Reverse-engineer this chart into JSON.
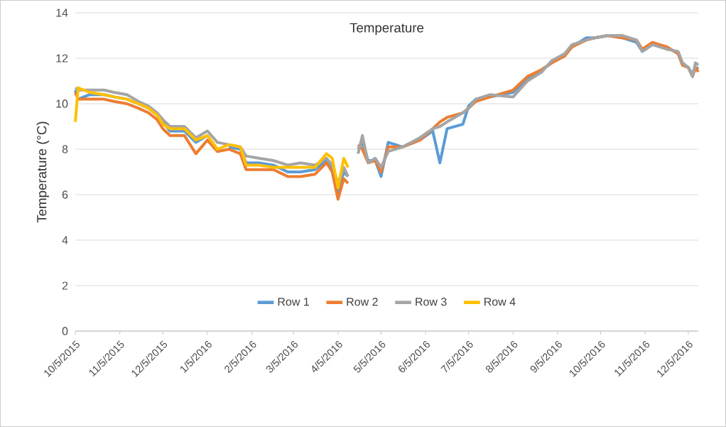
{
  "chart_data": {
    "type": "line",
    "title": "Temperature",
    "ylabel": "Temperature (°C)",
    "x": [
      "2015-10-05",
      "2015-10-07",
      "2015-10-15",
      "2015-10-25",
      "2015-11-01",
      "2015-11-10",
      "2015-11-18",
      "2015-11-25",
      "2015-12-01",
      "2015-12-05",
      "2015-12-10",
      "2015-12-20",
      "2015-12-28",
      "2016-01-05",
      "2016-01-12",
      "2016-01-20",
      "2016-01-28",
      "2016-02-01",
      "2016-02-10",
      "2016-02-20",
      "2016-03-01",
      "2016-03-10",
      "2016-03-20",
      "2016-03-28",
      "2016-04-01",
      "2016-04-05",
      "2016-04-09",
      "2016-04-12",
      "2016-04-15",
      "2016-04-19",
      "2016-04-22",
      "2016-04-26",
      "2016-05-01",
      "2016-05-05",
      "2016-05-10",
      "2016-05-20",
      "2016-06-01",
      "2016-06-10",
      "2016-06-15",
      "2016-06-20",
      "2016-07-01",
      "2016-07-05",
      "2016-07-10",
      "2016-07-20",
      "2016-08-05",
      "2016-08-15",
      "2016-08-25",
      "2016-09-01",
      "2016-09-10",
      "2016-09-15",
      "2016-09-25",
      "2016-10-01",
      "2016-10-10",
      "2016-10-20",
      "2016-10-30",
      "2016-11-03",
      "2016-11-10",
      "2016-11-20",
      "2016-11-28",
      "2016-12-01",
      "2016-12-05",
      "2016-12-08",
      "2016-12-10",
      "2016-12-12"
    ],
    "series": [
      {
        "name": "Row 1",
        "color": "#5b9bd5",
        "values": [
          10.6,
          10.2,
          10.4,
          10.4,
          10.3,
          10.2,
          10.0,
          9.8,
          9.5,
          9.2,
          8.8,
          8.8,
          8.3,
          8.6,
          null,
          8.1,
          8.0,
          7.4,
          7.4,
          7.3,
          7.0,
          7.0,
          7.1,
          7.5,
          7.2,
          6.1,
          7.0,
          6.8,
          null,
          8.0,
          8.3,
          7.5,
          7.5,
          6.8,
          8.3,
          8.1,
          8.4,
          8.8,
          7.4,
          8.9,
          9.1,
          9.9,
          10.2,
          10.3,
          10.5,
          11.1,
          11.5,
          11.8,
          12.2,
          12.5,
          12.9,
          12.9,
          13.0,
          12.9,
          12.7,
          12.3,
          12.6,
          12.5,
          12.2,
          11.7,
          11.6,
          11.3,
          11.5,
          11.6
        ]
      },
      {
        "name": "Row 2",
        "color": "#ed7d31",
        "values": [
          10.5,
          10.2,
          10.2,
          10.2,
          10.1,
          10.0,
          9.8,
          9.6,
          9.3,
          8.9,
          8.6,
          8.6,
          7.8,
          8.4,
          7.9,
          8.0,
          7.8,
          7.1,
          7.1,
          7.1,
          6.8,
          6.8,
          6.9,
          7.4,
          7.0,
          5.8,
          6.7,
          6.5,
          null,
          8.2,
          8.0,
          7.4,
          7.5,
          7.0,
          8.1,
          8.1,
          8.4,
          8.9,
          9.2,
          9.4,
          9.6,
          9.8,
          10.1,
          10.3,
          10.6,
          11.2,
          11.5,
          11.8,
          12.1,
          12.5,
          12.8,
          12.9,
          13.0,
          12.9,
          12.8,
          12.4,
          12.7,
          12.5,
          12.2,
          11.7,
          11.6,
          11.2,
          11.6,
          11.4
        ]
      },
      {
        "name": "Row 3",
        "color": "#a5a5a5",
        "values": [
          10.7,
          10.6,
          10.6,
          10.6,
          10.5,
          10.4,
          10.1,
          9.9,
          9.6,
          9.3,
          9.0,
          9.0,
          8.5,
          8.8,
          8.3,
          8.2,
          8.1,
          7.7,
          7.6,
          7.5,
          7.3,
          7.4,
          7.3,
          7.6,
          7.3,
          6.5,
          7.2,
          6.8,
          null,
          7.8,
          8.6,
          7.4,
          7.6,
          7.2,
          7.9,
          8.1,
          8.5,
          8.9,
          9.0,
          9.2,
          9.6,
          9.8,
          10.2,
          10.4,
          10.3,
          11.0,
          11.4,
          11.9,
          12.2,
          12.6,
          12.8,
          12.9,
          13.0,
          13.0,
          12.8,
          12.3,
          12.6,
          12.4,
          12.3,
          11.8,
          11.6,
          11.2,
          11.8,
          11.7
        ]
      },
      {
        "name": "Row 4",
        "color": "#ffc000",
        "values": [
          9.2,
          10.7,
          10.5,
          10.4,
          10.3,
          10.2,
          10.0,
          9.8,
          9.5,
          9.1,
          8.9,
          8.9,
          8.4,
          8.6,
          8.0,
          8.2,
          8.1,
          7.3,
          7.3,
          7.2,
          7.2,
          7.2,
          7.2,
          7.8,
          7.6,
          6.3,
          7.6,
          7.2,
          null,
          null,
          null,
          null,
          null,
          null,
          null,
          null,
          null,
          null,
          null,
          null,
          null,
          null,
          null,
          null,
          null,
          null,
          null,
          null,
          null,
          null,
          null,
          null,
          null,
          null,
          null,
          null,
          null,
          null,
          null,
          null,
          null,
          null,
          null,
          null
        ]
      }
    ],
    "xlim": [
      "2015-10-05",
      "2016-12-12"
    ],
    "xticks": [
      {
        "value": "2015-10-05",
        "label": "10/5/2015"
      },
      {
        "value": "2015-11-05",
        "label": "11/5/2015"
      },
      {
        "value": "2015-12-05",
        "label": "12/5/2015"
      },
      {
        "value": "2016-01-05",
        "label": "1/5/2016"
      },
      {
        "value": "2016-02-05",
        "label": "2/5/2016"
      },
      {
        "value": "2016-03-05",
        "label": "3/5/2016"
      },
      {
        "value": "2016-04-05",
        "label": "4/5/2016"
      },
      {
        "value": "2016-05-05",
        "label": "5/5/2016"
      },
      {
        "value": "2016-06-05",
        "label": "6/5/2016"
      },
      {
        "value": "2016-07-05",
        "label": "7/5/2016"
      },
      {
        "value": "2016-08-05",
        "label": "8/5/2016"
      },
      {
        "value": "2016-09-05",
        "label": "9/5/2016"
      },
      {
        "value": "2016-10-05",
        "label": "10/5/2016"
      },
      {
        "value": "2016-11-05",
        "label": "11/5/2016"
      },
      {
        "value": "2016-12-05",
        "label": "12/5/2016"
      }
    ],
    "ylim": [
      0,
      14
    ],
    "yticks": [
      0,
      2,
      4,
      6,
      8,
      10,
      12,
      14
    ],
    "grid": "y",
    "legend": "bottom",
    "marker": "none",
    "line_style": "solid"
  }
}
